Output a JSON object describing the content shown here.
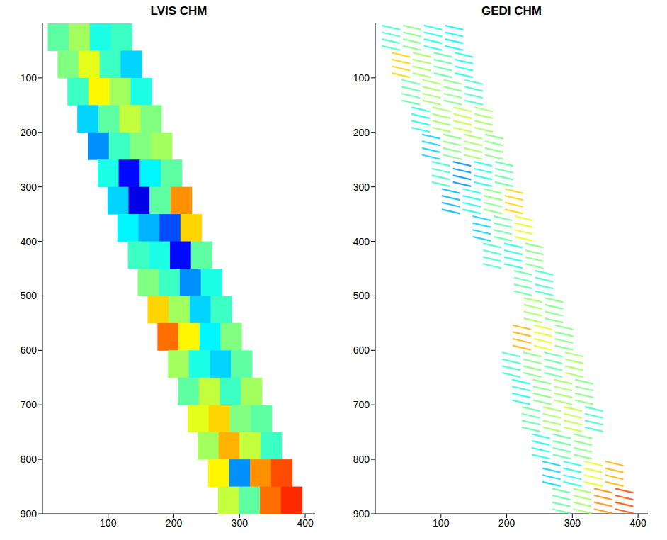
{
  "chart_data": [
    {
      "type": "heatmap",
      "title": "LVIS CHM",
      "marker": "square",
      "xlim": [
        0,
        415
      ],
      "xticks": [
        100,
        200,
        300,
        400
      ],
      "ylim": [
        0,
        900
      ],
      "yticks": [
        100,
        200,
        300,
        400,
        500,
        600,
        700,
        800,
        900
      ],
      "cell_width": 32,
      "cell_height": 50,
      "value_range": [
        0,
        30
      ],
      "cells": [
        [
          24,
          25,
          14
        ],
        [
          56,
          25,
          16
        ],
        [
          88,
          25,
          12
        ],
        [
          120,
          25,
          13
        ],
        [
          39,
          75,
          15
        ],
        [
          71,
          75,
          18
        ],
        [
          103,
          75,
          13
        ],
        [
          135,
          75,
          10
        ],
        [
          54,
          125,
          13
        ],
        [
          86,
          125,
          19
        ],
        [
          118,
          125,
          16
        ],
        [
          150,
          125,
          12
        ],
        [
          69,
          175,
          10
        ],
        [
          101,
          175,
          14
        ],
        [
          133,
          175,
          17
        ],
        [
          165,
          175,
          15
        ],
        [
          85,
          225,
          8
        ],
        [
          117,
          225,
          13
        ],
        [
          149,
          225,
          15
        ],
        [
          181,
          225,
          16
        ],
        [
          100,
          275,
          12
        ],
        [
          132,
          275,
          4
        ],
        [
          164,
          275,
          11
        ],
        [
          196,
          275,
          14
        ],
        [
          115,
          325,
          10
        ],
        [
          147,
          325,
          3
        ],
        [
          179,
          325,
          14
        ],
        [
          211,
          325,
          22
        ],
        [
          130,
          375,
          11
        ],
        [
          162,
          375,
          9
        ],
        [
          194,
          375,
          6
        ],
        [
          226,
          375,
          20
        ],
        [
          146,
          425,
          13
        ],
        [
          178,
          425,
          12
        ],
        [
          210,
          425,
          4
        ],
        [
          242,
          425,
          14
        ],
        [
          161,
          475,
          15
        ],
        [
          193,
          475,
          13
        ],
        [
          225,
          475,
          8
        ],
        [
          257,
          475,
          12
        ],
        [
          176,
          525,
          20
        ],
        [
          208,
          525,
          16
        ],
        [
          240,
          525,
          10
        ],
        [
          272,
          525,
          13
        ],
        [
          191,
          575,
          23
        ],
        [
          223,
          575,
          19
        ],
        [
          255,
          575,
          11
        ],
        [
          287,
          575,
          15
        ],
        [
          207,
          625,
          16
        ],
        [
          239,
          625,
          12
        ],
        [
          271,
          625,
          10
        ],
        [
          303,
          625,
          14
        ],
        [
          222,
          675,
          14
        ],
        [
          254,
          675,
          17
        ],
        [
          286,
          675,
          13
        ],
        [
          318,
          675,
          16
        ],
        [
          237,
          725,
          18
        ],
        [
          269,
          725,
          20
        ],
        [
          301,
          725,
          15
        ],
        [
          333,
          725,
          14
        ],
        [
          252,
          775,
          16
        ],
        [
          284,
          775,
          21
        ],
        [
          316,
          775,
          17
        ],
        [
          348,
          775,
          13
        ],
        [
          268,
          825,
          19
        ],
        [
          300,
          825,
          8
        ],
        [
          332,
          825,
          22
        ],
        [
          364,
          825,
          24
        ],
        [
          283,
          875,
          17
        ],
        [
          315,
          875,
          14
        ],
        [
          347,
          875,
          23
        ],
        [
          379,
          875,
          25
        ]
      ]
    },
    {
      "type": "heatmap",
      "title": "GEDI CHM",
      "marker": "line",
      "xlim": [
        0,
        415
      ],
      "xticks": [
        100,
        200,
        300,
        400
      ],
      "ylim": [
        0,
        900
      ],
      "yticks": [
        100,
        200,
        300,
        400,
        500,
        600,
        700,
        800,
        900
      ],
      "cell_width": 32,
      "cell_height": 50,
      "value_range": [
        0,
        30
      ],
      "cells": [
        [
          24,
          25,
          13
        ],
        [
          56,
          25,
          15
        ],
        [
          88,
          25,
          12
        ],
        [
          120,
          25,
          11
        ],
        [
          39,
          75,
          20
        ],
        [
          71,
          75,
          16
        ],
        [
          103,
          75,
          14
        ],
        [
          135,
          75,
          12
        ],
        [
          54,
          125,
          14
        ],
        [
          86,
          125,
          16
        ],
        [
          118,
          125,
          15
        ],
        [
          150,
          125,
          13
        ],
        [
          69,
          175,
          12
        ],
        [
          101,
          175,
          16
        ],
        [
          133,
          175,
          17
        ],
        [
          165,
          175,
          16
        ],
        [
          85,
          225,
          10
        ],
        [
          117,
          225,
          15
        ],
        [
          149,
          225,
          16
        ],
        [
          181,
          225,
          15
        ],
        [
          100,
          275,
          13
        ],
        [
          132,
          275,
          8
        ],
        [
          164,
          275,
          12
        ],
        [
          196,
          275,
          14
        ],
        [
          115,
          325,
          9
        ],
        [
          147,
          325,
          12
        ],
        [
          179,
          325,
          15
        ],
        [
          211,
          325,
          20
        ],
        [
          162,
          375,
          10
        ],
        [
          194,
          375,
          14
        ],
        [
          226,
          375,
          18
        ],
        [
          178,
          425,
          13
        ],
        [
          210,
          425,
          12
        ],
        [
          242,
          425,
          15
        ],
        [
          225,
          475,
          14
        ],
        [
          257,
          475,
          13
        ],
        [
          240,
          525,
          16
        ],
        [
          272,
          525,
          15
        ],
        [
          223,
          575,
          21
        ],
        [
          255,
          575,
          18
        ],
        [
          287,
          575,
          15
        ],
        [
          207,
          625,
          13
        ],
        [
          239,
          625,
          15
        ],
        [
          271,
          625,
          14
        ],
        [
          303,
          625,
          16
        ],
        [
          222,
          675,
          12
        ],
        [
          254,
          675,
          15
        ],
        [
          286,
          675,
          16
        ],
        [
          318,
          675,
          15
        ],
        [
          237,
          725,
          14
        ],
        [
          269,
          725,
          16
        ],
        [
          301,
          725,
          17
        ],
        [
          333,
          725,
          13
        ],
        [
          252,
          775,
          12
        ],
        [
          284,
          775,
          14
        ],
        [
          316,
          775,
          15
        ],
        [
          268,
          825,
          10
        ],
        [
          300,
          825,
          12
        ],
        [
          332,
          825,
          18
        ],
        [
          364,
          825,
          21
        ],
        [
          283,
          875,
          14
        ],
        [
          315,
          875,
          16
        ],
        [
          347,
          875,
          22
        ],
        [
          379,
          875,
          24
        ]
      ]
    }
  ]
}
